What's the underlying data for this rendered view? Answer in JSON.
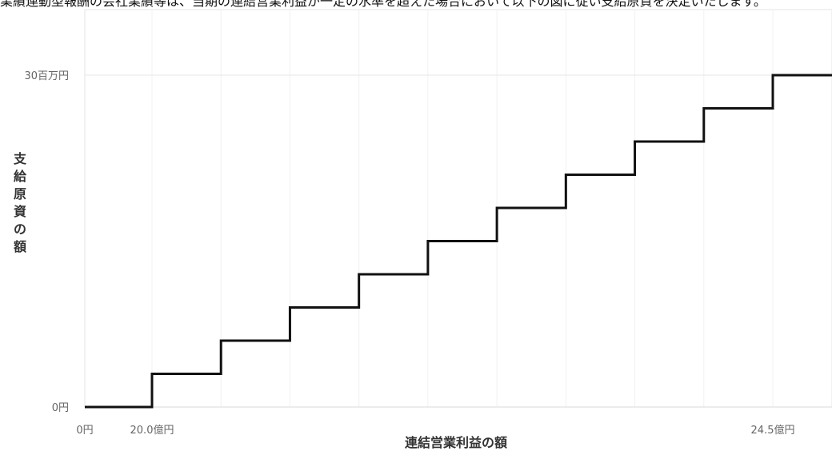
{
  "header": {
    "caption": "業績連動型報酬の会社業績等は、当期の連結営業利益が一定の水準を超えた場合において以下の図に従い支給原資を決定いたします。"
  },
  "chart_data": {
    "type": "line",
    "step": true,
    "xlabel": "連結営業利益の額",
    "ylabel": "支給原資の額",
    "x_ticks": [
      {
        "value": 0,
        "label": "0円"
      },
      {
        "value": 20.0,
        "label": "20.0億円"
      },
      {
        "value": 24.5,
        "label": "24.5億円"
      }
    ],
    "y_ticks": [
      {
        "value": 0,
        "label": "0円"
      },
      {
        "value": 30,
        "label": "30百万円"
      }
    ],
    "x": [
      0,
      20.0,
      20.5,
      21.0,
      21.5,
      22.0,
      22.5,
      23.0,
      23.5,
      24.0,
      24.5
    ],
    "y": [
      0,
      3,
      6,
      9,
      12,
      15,
      18,
      21,
      24,
      27,
      30
    ],
    "series": [
      {
        "values": [
          0,
          3,
          6,
          9,
          12,
          15,
          18,
          21,
          24,
          27,
          30
        ]
      }
    ],
    "grid": true,
    "line_color": "#111111",
    "grid_color": "#e6e6e6"
  }
}
